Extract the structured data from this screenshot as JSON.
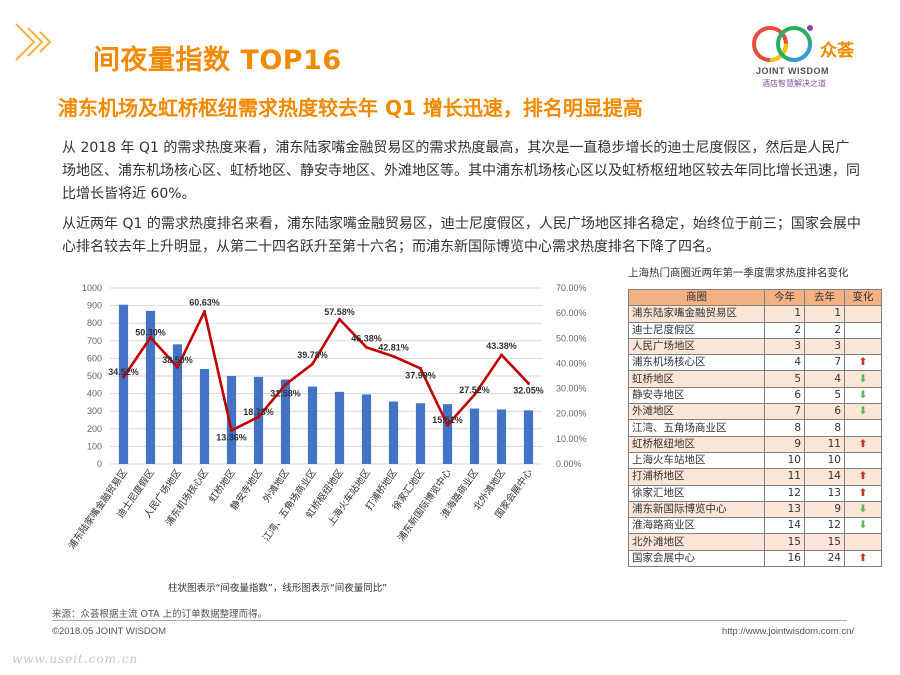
{
  "header": {
    "title": "间夜量指数 TOP16",
    "logo": {
      "cn": "众荟",
      "en": "JOINT WISDOM",
      "tagline": "酒店智慧解决之道"
    }
  },
  "headline": "浦东机场及虹桥枢纽需求热度较去年 Q1 增长迅速，排名明显提高",
  "paragraphs": [
    "从 2018 年 Q1 的需求热度来看，浦东陆家嘴金融贸易区的需求热度最高，其次是一直稳步增长的迪士尼度假区，然后是人民广场地区、浦东机场核心区、虹桥地区、静安寺地区、外滩地区等。其中浦东机场核心区以及虹桥枢纽地区较去年同比增长迅速，同比增长皆将近 60%。",
    "从近两年 Q1 的需求热度排名来看，浦东陆家嘴金融贸易区，迪士尼度假区，人民广场地区排名稳定，始终位于前三；国家会展中心排名较去年上升明显，从第二十四名跃升至第十六名；而浦东新国际博览中心需求热度排名下降了四名。"
  ],
  "chart_data": {
    "type": "bar",
    "categories": [
      "浦东陆家嘴金融贸易区",
      "迪士尼度假区",
      "人民广场地区",
      "浦东机场核心区",
      "虹桥地区",
      "静安寺地区",
      "外滩地区",
      "江湾、五角场商业区",
      "虹桥枢纽地区",
      "上海火车站地区",
      "打浦桥地区",
      "徐家汇地区",
      "浦东新国际博览中心",
      "淮海路商业区",
      "北外滩地区",
      "国家会展中心"
    ],
    "series": [
      {
        "name": "间夜量指数",
        "type": "bar",
        "axis": "left",
        "color": "#4472c4",
        "values": [
          905,
          870,
          680,
          540,
          500,
          495,
          480,
          440,
          410,
          395,
          355,
          345,
          340,
          315,
          310,
          305
        ]
      },
      {
        "name": "间夜量同比",
        "type": "line",
        "axis": "right",
        "color": "#c00000",
        "values": [
          34.52,
          50.3,
          38.5,
          60.63,
          13.36,
          18.73,
          31.58,
          39.78,
          57.58,
          46.38,
          42.81,
          37.99,
          15.51,
          27.52,
          43.38,
          32.05
        ],
        "labels": [
          "34.52%",
          "50.30%",
          "38.50%",
          "60.63%",
          "13.36%",
          "18.73%",
          "31.58%",
          "39.78%",
          "57.58%",
          "46.38%",
          "42.81%",
          "37.99%",
          "15.51%",
          "27.52%",
          "43.38%",
          "32.05%"
        ]
      }
    ],
    "y_left": {
      "min": 0,
      "max": 1000,
      "ticks": [
        "0",
        "100",
        "200",
        "300",
        "400",
        "500",
        "600",
        "700",
        "800",
        "900",
        "1000"
      ]
    },
    "y_right": {
      "min": 0,
      "max": 70,
      "ticks": [
        "0.00%",
        "10.00%",
        "20.00%",
        "30.00%",
        "40.00%",
        "50.00%",
        "60.00%",
        "70.00%"
      ]
    },
    "grid": true,
    "note": "柱状图表示“间夜量指数”，线形图表示“间夜量同比”"
  },
  "table": {
    "caption": "上海热门商圈近两年第一季度需求热度排名变化",
    "headers": [
      "商圈",
      "今年",
      "去年",
      "变化"
    ],
    "rows": [
      {
        "area": "浦东陆家嘴金融贸易区",
        "this_year": "1",
        "last_year": "1",
        "change": ""
      },
      {
        "area": "迪士尼度假区",
        "this_year": "2",
        "last_year": "2",
        "change": ""
      },
      {
        "area": "人民广场地区",
        "this_year": "3",
        "last_year": "3",
        "change": ""
      },
      {
        "area": "浦东机场核心区",
        "this_year": "4",
        "last_year": "7",
        "change": "up"
      },
      {
        "area": "虹桥地区",
        "this_year": "5",
        "last_year": "4",
        "change": "down"
      },
      {
        "area": "静安寺地区",
        "this_year": "6",
        "last_year": "5",
        "change": "down"
      },
      {
        "area": "外滩地区",
        "this_year": "7",
        "last_year": "6",
        "change": "down"
      },
      {
        "area": "江湾、五角场商业区",
        "this_year": "8",
        "last_year": "8",
        "change": ""
      },
      {
        "area": "虹桥枢纽地区",
        "this_year": "9",
        "last_year": "11",
        "change": "up"
      },
      {
        "area": "上海火车站地区",
        "this_year": "10",
        "last_year": "10",
        "change": ""
      },
      {
        "area": "打浦桥地区",
        "this_year": "11",
        "last_year": "14",
        "change": "up"
      },
      {
        "area": "徐家汇地区",
        "this_year": "12",
        "last_year": "13",
        "change": "up"
      },
      {
        "area": "浦东新国际博览中心",
        "this_year": "13",
        "last_year": "9",
        "change": "down"
      },
      {
        "area": "淮海路商业区",
        "this_year": "14",
        "last_year": "12",
        "change": "down"
      },
      {
        "area": "北外滩地区",
        "this_year": "15",
        "last_year": "15",
        "change": ""
      },
      {
        "area": "国家会展中心",
        "this_year": "16",
        "last_year": "24",
        "change": "up"
      }
    ],
    "icons": {
      "up": "up-arrow-icon",
      "down": "down-arrow-icon"
    }
  },
  "footer": {
    "source": "来源：众荟根据主流 OTA 上的订单数据整理而得。",
    "copyright": "©2018.05 JOINT WISDOM",
    "website": "http://www.jointwisdom.com.cn/",
    "watermark": "www.useit.com.cn"
  },
  "colors": {
    "accent": "#f08a00",
    "bar": "#4472c4",
    "line": "#c00000",
    "table_header": "#f4b183",
    "table_shade": "#fbe5d6",
    "up": "#c0392b",
    "down": "#5cb85c"
  }
}
